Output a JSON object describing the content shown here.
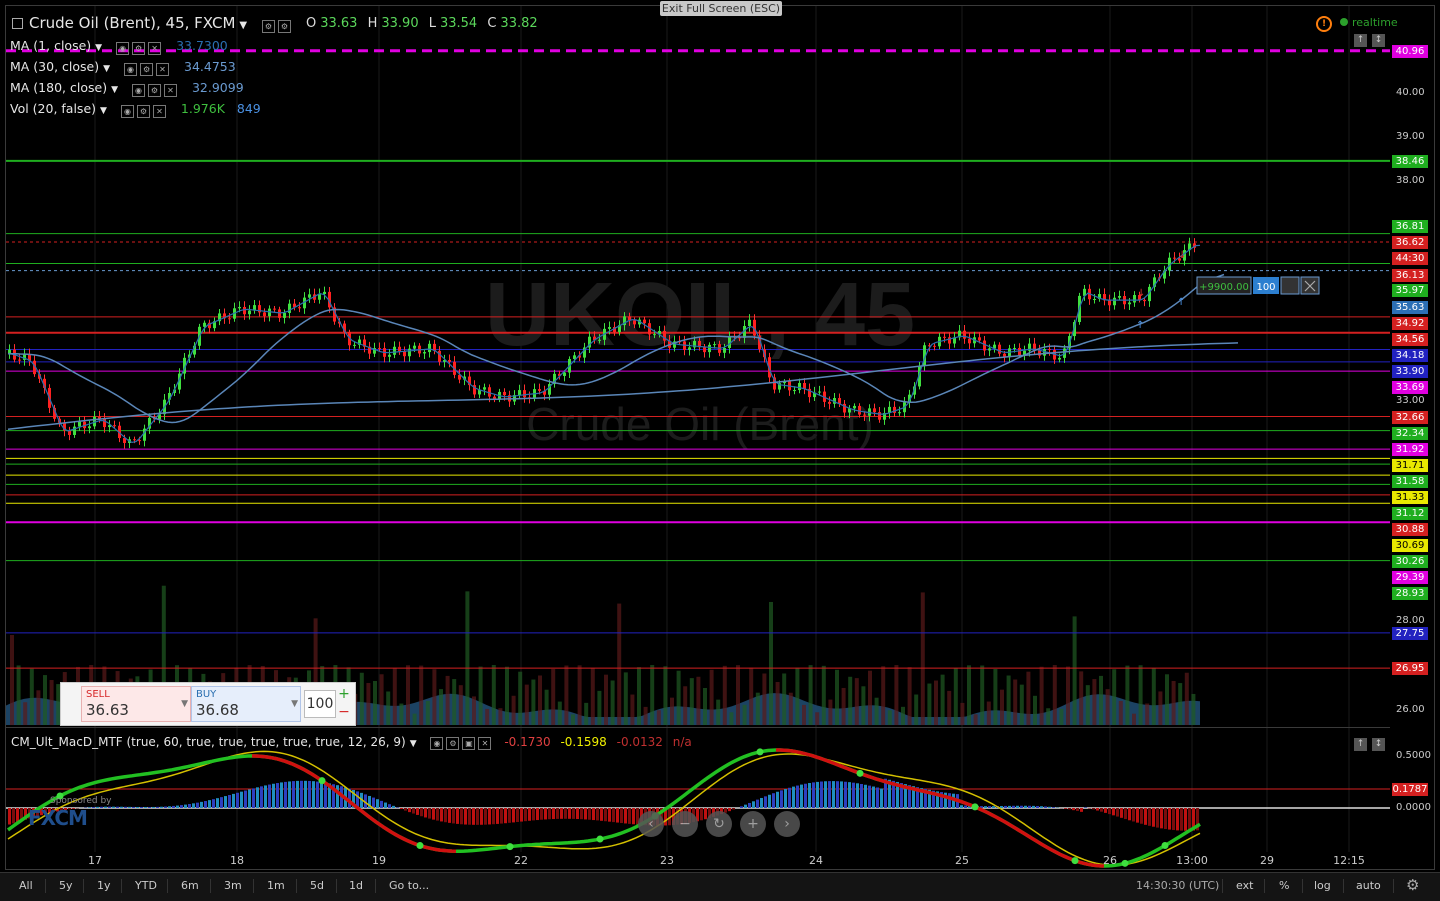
{
  "header": {
    "title": "Crude Oil (Brent), 45, FXCM",
    "ohlc": [
      {
        "k": "O",
        "v": "33.63"
      },
      {
        "k": "H",
        "v": "33.90"
      },
      {
        "k": "L",
        "v": "33.54"
      },
      {
        "k": "C",
        "v": "33.82"
      }
    ],
    "exit_label": "Exit Full Screen (ESC)",
    "realtime_label": "realtime"
  },
  "indicators": [
    {
      "name": "MA (1, close)",
      "value": "33.7300",
      "vol2": "",
      "color": "#2a6fb0"
    },
    {
      "name": "MA (30, close)",
      "value": "34.4753",
      "vol2": "",
      "color": "#6a9ad0"
    },
    {
      "name": "MA (180, close)",
      "value": "32.9099",
      "vol2": "",
      "color": "#6a9ad0"
    },
    {
      "name": "Vol (20, false)",
      "value": "1.976K",
      "vol2": "849",
      "color": "#3fbf3f"
    }
  ],
  "watermark": {
    "symbol": "UKOIL, 45",
    "name": "Crude Oil (Brent)"
  },
  "price_axis": {
    "plain": [
      "40.00",
      "39.00",
      "38.00",
      "33.00",
      "28.00",
      "26.00"
    ],
    "labels": [
      {
        "text": "40.96",
        "bg": "#e000e0"
      },
      {
        "text": "38.46",
        "bg": "#1fae1f"
      },
      {
        "text": "36.81",
        "bg": "#1fae1f"
      },
      {
        "text": "36.62",
        "bg": "#d42020"
      },
      {
        "text": "44:30",
        "bg": "#d42020"
      },
      {
        "text": "36.13",
        "bg": "#d42020"
      },
      {
        "text": "35.97",
        "bg": "#1fae1f"
      },
      {
        "text": "35.63",
        "bg": "#2c6fb5"
      },
      {
        "text": "34.92",
        "bg": "#d42020"
      },
      {
        "text": "34.56",
        "bg": "#d42020"
      },
      {
        "text": "34.18",
        "bg": "#2222c0"
      },
      {
        "text": "33.90",
        "bg": "#2222c0"
      },
      {
        "text": "33.69",
        "bg": "#e000e0"
      },
      {
        "text": "32.66",
        "bg": "#d42020"
      },
      {
        "text": "32.34",
        "bg": "#1fae1f"
      },
      {
        "text": "31.92",
        "bg": "#e000e0"
      },
      {
        "text": "31.71",
        "bg": "#e8e800"
      },
      {
        "text": "31.58",
        "bg": "#1fae1f"
      },
      {
        "text": "31.33",
        "bg": "#e8e800"
      },
      {
        "text": "31.12",
        "bg": "#1fae1f"
      },
      {
        "text": "30.88",
        "bg": "#d42020"
      },
      {
        "text": "30.69",
        "bg": "#e8e800"
      },
      {
        "text": "30.26",
        "bg": "#1fae1f"
      },
      {
        "text": "29.39",
        "bg": "#e000e0"
      },
      {
        "text": "28.93",
        "bg": "#1fae1f"
      },
      {
        "text": "27.75",
        "bg": "#2222c0"
      },
      {
        "text": "26.95",
        "bg": "#d42020"
      }
    ]
  },
  "position": {
    "pnl": "+9900.00",
    "qty": "100"
  },
  "trade": {
    "sell_label": "SELL",
    "sell_price": "36.63",
    "buy_label": "BUY",
    "buy_price": "36.68",
    "qty": "100"
  },
  "macd": {
    "title": "CM_Ult_MacD_MTF (true, 60, true, true, true, true, true, 12, 26, 9)",
    "v1": "-0.1730",
    "v2": "-0.1598",
    "v3": "-0.0132",
    "v4": "n/a",
    "axis": [
      "0.5000",
      "0.1787",
      "0.0000"
    ]
  },
  "sponsor": {
    "text": "Sponsored by",
    "brand": "FXCM"
  },
  "x_axis": [
    "17",
    "18",
    "19",
    "22",
    "23",
    "24",
    "25",
    "26",
    "13:00",
    "29",
    "12:15"
  ],
  "bottom_bar": {
    "timeframes": [
      "All",
      "5y",
      "1y",
      "YTD",
      "6m",
      "3m",
      "1m",
      "5d",
      "1d",
      "Go to..."
    ],
    "clock": "14:30:30 (UTC)",
    "options": [
      "ext",
      "%",
      "log",
      "auto"
    ]
  }
}
